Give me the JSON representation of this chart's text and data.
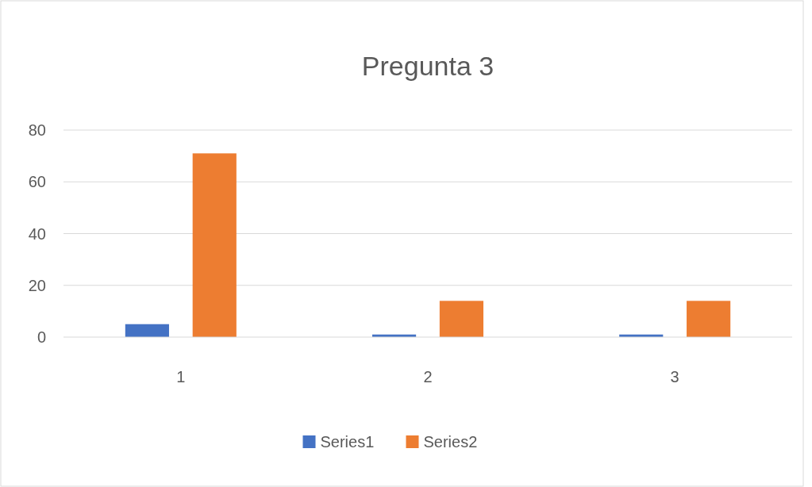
{
  "chart_data": {
    "type": "bar",
    "title": "Pregunta 3",
    "categories": [
      "1",
      "2",
      "3"
    ],
    "series": [
      {
        "name": "Series1",
        "color": "#4472c4",
        "values": [
          5,
          1,
          1
        ]
      },
      {
        "name": "Series2",
        "color": "#ed7d31",
        "values": [
          71,
          14,
          14
        ]
      }
    ],
    "ylim": [
      0,
      80
    ],
    "yticks": [
      0,
      20,
      40,
      60,
      80
    ],
    "grid": "y",
    "legend": "bottom"
  }
}
